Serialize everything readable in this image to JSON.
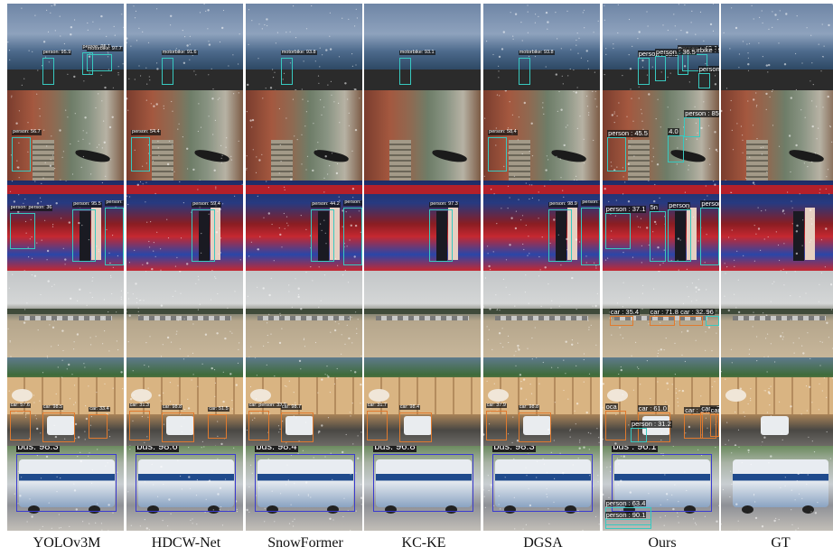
{
  "columns": [
    "YOLOv3M",
    "HDCW-Net",
    "SnowFormer",
    "KC-KE",
    "DGSA",
    "Ours",
    "GT"
  ],
  "colors": {
    "person_box": "#38c9c0",
    "car_box": "#e07a2e",
    "bus_box": "#3a3ad0",
    "motorbike_box": "#38c9c0"
  },
  "rows": [
    {
      "scene": "sea",
      "cells": [
        {
          "labels": [
            "person: 95.9",
            "person: 95.1",
            "motorbike: 97.7"
          ]
        },
        {
          "labels": [
            "motorbike: 91.6"
          ]
        },
        {
          "labels": [
            "motorbike: 93.8"
          ]
        },
        {
          "labels": [
            "motorbike: 93.1"
          ]
        },
        {
          "labels": [
            "motorbike: 93.8"
          ]
        },
        {
          "labels": [
            "person : 68.5",
            "person : 49.1",
            "motorbike : 98",
            "person : 36.5",
            "person"
          ]
        },
        {
          "labels": []
        }
      ]
    },
    {
      "scene": "canal",
      "cells": [
        {
          "labels": [
            "person: 56.7"
          ]
        },
        {
          "labels": [
            "person: 54.4"
          ]
        },
        {
          "labels": []
        },
        {
          "labels": []
        },
        {
          "labels": [
            "person: 58.4"
          ]
        },
        {
          "labels": [
            "person : 45.5",
            "person : 85.5",
            "4.0"
          ]
        },
        {
          "labels": []
        }
      ]
    },
    {
      "scene": "gym",
      "cells": [
        {
          "labels": [
            "person: 95.5",
            "person: 98",
            "person: person: 36"
          ]
        },
        {
          "labels": [
            "person: 59.4"
          ]
        },
        {
          "labels": [
            "person: 44.2",
            "person: 98.6"
          ]
        },
        {
          "labels": [
            "person: 97.3"
          ]
        },
        {
          "labels": [
            "person: 98.9",
            "person: 59.4"
          ]
        },
        {
          "labels": [
            "person",
            "person : 72.4",
            "person : 37.1",
            "5n"
          ]
        },
        {
          "labels": []
        }
      ]
    },
    {
      "scene": "lot",
      "cells": [
        {
          "labels": []
        },
        {
          "labels": []
        },
        {
          "labels": []
        },
        {
          "labels": []
        },
        {
          "labels": []
        },
        {
          "labels": [
            "car : 35.4",
            "car : 71.8",
            "car : 32.3",
            "96"
          ]
        },
        {
          "labels": []
        }
      ]
    },
    {
      "scene": "street",
      "cells": [
        {
          "labels": [
            "car: 57.6",
            "car: 98.5",
            "car: 33.4"
          ]
        },
        {
          "labels": [
            "car: 31.3",
            "car: 98.8",
            "car: 51.5"
          ]
        },
        {
          "labels": [
            "car: person: 33.9",
            "car: 98.7"
          ]
        },
        {
          "labels": [
            "car: 31.7",
            "car: 98.4"
          ]
        },
        {
          "labels": [
            "car: 37.9",
            "car: 98.8"
          ]
        },
        {
          "labels": [
            "oca",
            "car : 61.0",
            "car : 64.1",
            "person : 31.2",
            "car : 39.5",
            "car : 8"
          ]
        },
        {
          "labels": []
        }
      ]
    },
    {
      "scene": "bus",
      "cells": [
        {
          "labels": [
            "bus: 98.3"
          ]
        },
        {
          "labels": [
            "bus: 98.6"
          ]
        },
        {
          "labels": [
            "bus: 98.4"
          ]
        },
        {
          "labels": [
            "bus: 96.8"
          ]
        },
        {
          "labels": [
            "bus: 98.3"
          ]
        },
        {
          "labels": [
            "bus : 96.1",
            "person : 63.4",
            "person : 90.1"
          ]
        },
        {
          "labels": []
        }
      ]
    }
  ]
}
